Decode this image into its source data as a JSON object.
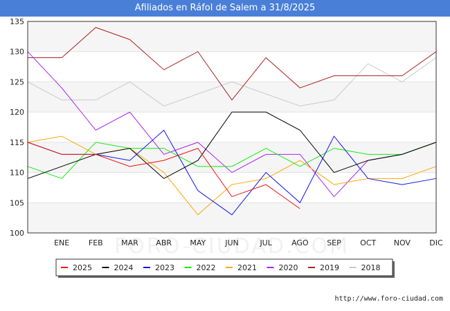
{
  "page": {
    "title": "Afiliados en Ráfol de Salem a 31/8/2025",
    "credit": "http://www.foro-ciudad.com",
    "watermark": "FORO-CIUDAD.COM"
  },
  "chart_data": {
    "type": "line",
    "title": "Afiliados en Ráfol de Salem a 31/8/2025",
    "xlabel": "",
    "ylabel": "",
    "ylim": [
      100,
      135
    ],
    "yticks": [
      100,
      105,
      110,
      115,
      120,
      125,
      130,
      135
    ],
    "categories": [
      "",
      "ENE",
      "FEB",
      "MAR",
      "ABR",
      "MAY",
      "JUN",
      "JUL",
      "AGO",
      "SEP",
      "OCT",
      "NOV",
      "DIC"
    ],
    "grid": "horizontal bands",
    "legend_position": "bottom",
    "series": [
      {
        "name": "2025",
        "color": "#ee1111",
        "values": [
          115,
          113,
          113,
          111,
          112,
          114,
          106,
          108,
          104,
          null,
          null,
          null,
          null
        ]
      },
      {
        "name": "2024",
        "color": "#000000",
        "values": [
          109,
          111,
          113,
          114,
          109,
          112,
          120,
          120,
          117,
          110,
          112,
          113,
          115
        ]
      },
      {
        "name": "2023",
        "color": "#1111ee",
        "values": [
          115,
          113,
          113,
          112,
          117,
          107,
          103,
          110,
          105,
          116,
          109,
          108,
          109
        ]
      },
      {
        "name": "2022",
        "color": "#11ee11",
        "values": [
          111,
          109,
          115,
          114,
          114,
          111,
          111,
          114,
          111,
          114,
          113,
          113,
          115
        ]
      },
      {
        "name": "2021",
        "color": "#ffa500",
        "values": [
          115,
          116,
          113,
          114,
          110,
          103,
          108,
          109,
          112,
          108,
          109,
          109,
          111
        ]
      },
      {
        "name": "2020",
        "color": "#aa22ee",
        "values": [
          130,
          124,
          117,
          120,
          113,
          115,
          110,
          113,
          113,
          106,
          112,
          113,
          115
        ]
      },
      {
        "name": "2019",
        "color": "#aa2222",
        "values": [
          129,
          129,
          134,
          132,
          127,
          130,
          122,
          129,
          124,
          126,
          126,
          126,
          130
        ]
      },
      {
        "name": "2018",
        "color": "#c8c8c8",
        "values": [
          125,
          122,
          122,
          125,
          121,
          123,
          125,
          123,
          121,
          122,
          128,
          125,
          129
        ]
      }
    ]
  }
}
